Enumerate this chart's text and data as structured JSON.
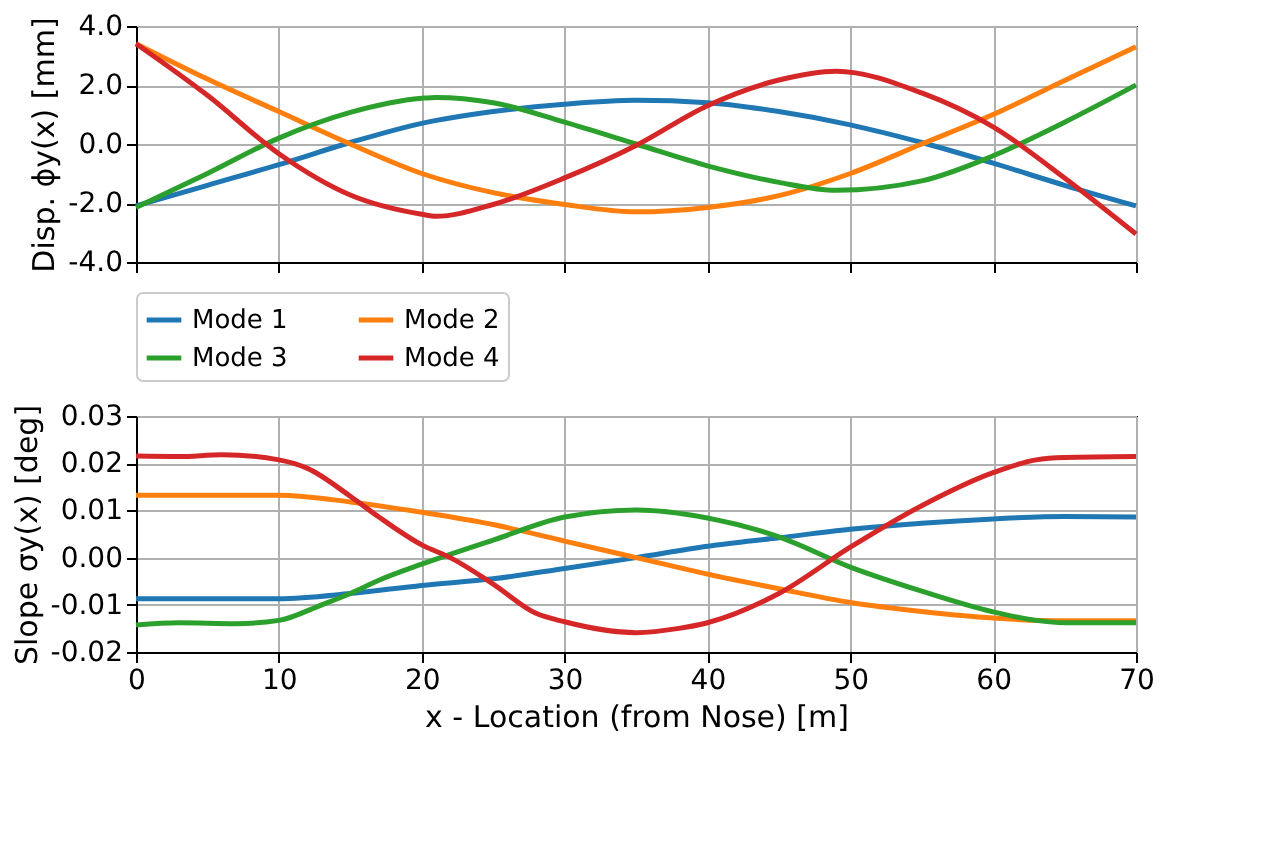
{
  "chart_data": [
    {
      "type": "line",
      "ylabel": "Disp. ϕy(x) [mm]",
      "xlim": [
        0,
        70
      ],
      "xticks": [
        0,
        10,
        20,
        30,
        40,
        50,
        60,
        70
      ],
      "ylim": [
        -4,
        4
      ],
      "yticks": [
        {
          "value": -4,
          "label": "-4.0"
        },
        {
          "value": -2,
          "label": "-2.0"
        },
        {
          "value": 0,
          "label": "0.0"
        },
        {
          "value": 2,
          "label": "2.0"
        },
        {
          "value": 4,
          "label": "4.0"
        }
      ],
      "tick_labels": "y",
      "grid": true,
      "legend": false,
      "line_style": "solid",
      "marker": "none",
      "series": [
        {
          "color": "#1f77b4",
          "x": [
            0,
            5,
            10,
            15,
            20,
            25,
            30,
            35,
            40,
            45,
            50,
            55,
            60,
            65,
            70
          ],
          "values": [
            -2.1,
            -1.4,
            -0.7,
            0.05,
            0.7,
            1.1,
            1.35,
            1.48,
            1.4,
            1.1,
            0.65,
            0.05,
            -0.65,
            -1.4,
            -2.1
          ]
        },
        {
          "color": "#ff7f0e",
          "x": [
            0,
            5,
            10,
            15,
            20,
            25,
            30,
            35,
            40,
            45,
            50,
            55,
            60,
            65,
            70
          ],
          "values": [
            3.4,
            2.2,
            1.1,
            0.0,
            -1.0,
            -1.65,
            -2.05,
            -2.3,
            -2.15,
            -1.75,
            -1.0,
            0.0,
            1.0,
            2.15,
            3.3
          ]
        },
        {
          "color": "#2ca02c",
          "x": [
            0,
            5,
            10,
            15,
            20,
            21,
            25,
            30,
            35,
            40,
            45,
            49,
            55,
            60,
            65,
            70
          ],
          "values": [
            -2.15,
            -1.0,
            0.2,
            1.07,
            1.55,
            1.58,
            1.4,
            0.74,
            0.0,
            -0.74,
            -1.3,
            -1.57,
            -1.25,
            -0.4,
            0.74,
            2.0
          ]
        },
        {
          "color": "#d62728",
          "x": [
            0,
            5,
            10,
            15,
            20,
            21,
            25,
            30,
            35,
            40,
            45,
            49,
            55,
            60,
            65,
            70
          ],
          "values": [
            3.4,
            1.65,
            -0.33,
            -1.73,
            -2.38,
            -2.45,
            -2.05,
            -1.15,
            -0.05,
            1.3,
            2.17,
            2.47,
            1.73,
            0.58,
            -1.15,
            -3.05
          ]
        }
      ]
    },
    {
      "type": "line",
      "xlabel": "x - Location (from Nose) [m]",
      "ylabel": "Slope σy(x) [deg]",
      "xlim": [
        0,
        70
      ],
      "xticks": [
        0,
        10,
        20,
        30,
        40,
        50,
        60,
        70
      ],
      "ylim": [
        -0.02,
        0.03
      ],
      "yticks": [
        {
          "value": -0.02,
          "label": "-0.02"
        },
        {
          "value": -0.01,
          "label": "-0.01"
        },
        {
          "value": 0,
          "label": "0.00"
        },
        {
          "value": 0.01,
          "label": "0.01"
        },
        {
          "value": 0.02,
          "label": "0.02"
        },
        {
          "value": 0.03,
          "label": "0.03"
        }
      ],
      "grid": true,
      "legend": "top",
      "line_style": "solid",
      "marker": "none",
      "series": [
        {
          "name": "Mode 1",
          "color": "#1f77b4",
          "x": [
            0,
            10,
            15,
            20,
            25,
            30,
            35,
            40,
            45,
            50,
            55,
            60,
            65,
            70
          ],
          "values": [
            -0.0087,
            -0.0087,
            -0.0076,
            -0.0059,
            -0.0045,
            -0.0023,
            0.0,
            0.0024,
            0.0042,
            0.006,
            0.0073,
            0.0082,
            0.0087,
            0.0086
          ]
        },
        {
          "name": "Mode 2",
          "color": "#ff7f0e",
          "x": [
            0,
            10,
            15,
            20,
            25,
            30,
            35,
            40,
            45,
            50,
            55,
            60,
            65,
            70
          ],
          "values": [
            0.0132,
            0.0132,
            0.0118,
            0.0096,
            0.007,
            0.0035,
            0.0,
            -0.0035,
            -0.0066,
            -0.0095,
            -0.0114,
            -0.0128,
            -0.0134,
            -0.0134
          ]
        },
        {
          "name": "Mode 3",
          "color": "#2ca02c",
          "x": [
            0,
            3,
            7,
            10,
            13,
            15,
            17,
            20,
            25,
            30,
            35,
            40,
            45,
            50,
            55,
            60,
            63,
            65,
            70
          ],
          "values": [
            -0.0143,
            -0.0138,
            -0.014,
            -0.0133,
            -0.01,
            -0.0076,
            -0.0048,
            -0.0014,
            0.0037,
            0.0086,
            0.0101,
            0.0084,
            0.0044,
            -0.002,
            -0.0071,
            -0.0115,
            -0.0133,
            -0.0138,
            -0.0138
          ]
        },
        {
          "name": "Mode 4",
          "color": "#d62728",
          "x": [
            0,
            3,
            6,
            10,
            12,
            15,
            17,
            20,
            22,
            25,
            28,
            30,
            35,
            38,
            40,
            45,
            50,
            55,
            60,
            63,
            65,
            70
          ],
          "values": [
            0.0215,
            0.0214,
            0.0218,
            0.0207,
            0.0189,
            0.013,
            0.0086,
            0.0027,
            0.0,
            -0.0056,
            -0.0118,
            -0.0136,
            -0.0159,
            -0.015,
            -0.0138,
            -0.0076,
            0.0022,
            0.011,
            0.018,
            0.0207,
            0.0212,
            0.0214
          ]
        }
      ]
    }
  ]
}
